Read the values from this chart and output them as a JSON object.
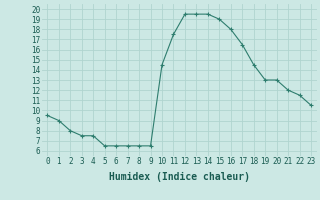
{
  "x": [
    0,
    1,
    2,
    3,
    4,
    5,
    6,
    7,
    8,
    9,
    10,
    11,
    12,
    13,
    14,
    15,
    16,
    17,
    18,
    19,
    20,
    21,
    22,
    23
  ],
  "y": [
    9.5,
    9.0,
    8.0,
    7.5,
    7.5,
    6.5,
    6.5,
    6.5,
    6.5,
    6.5,
    14.5,
    17.5,
    19.5,
    19.5,
    19.5,
    19.0,
    18.0,
    16.5,
    14.5,
    13.0,
    13.0,
    12.0,
    11.5,
    10.5
  ],
  "line_color": "#2e7d6e",
  "marker_color": "#2e7d6e",
  "bg_color": "#cce8e4",
  "grid_color": "#b0d4cf",
  "xlabel": "Humidex (Indice chaleur)",
  "xlim": [
    -0.5,
    23.5
  ],
  "ylim": [
    5.5,
    20.5
  ],
  "ytick_values": [
    6,
    7,
    8,
    9,
    10,
    11,
    12,
    13,
    14,
    15,
    16,
    17,
    18,
    19,
    20
  ],
  "xtick_labels": [
    "0",
    "1",
    "2",
    "3",
    "4",
    "5",
    "6",
    "7",
    "8",
    "9",
    "10",
    "11",
    "12",
    "13",
    "14",
    "15",
    "16",
    "17",
    "18",
    "19",
    "20",
    "21",
    "22",
    "23"
  ],
  "label_fontsize": 7,
  "tick_fontsize": 5.5
}
